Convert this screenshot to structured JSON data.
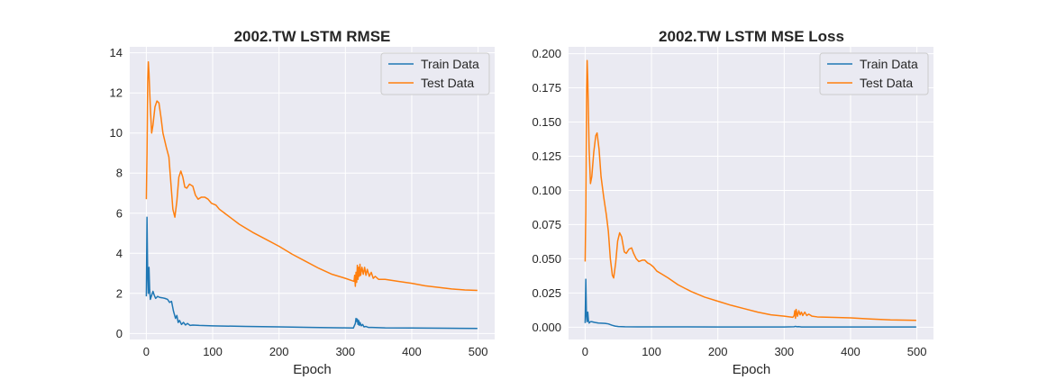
{
  "chart_data": [
    {
      "type": "line",
      "title": "2002.TW  LSTM RMSE",
      "xlabel": "Epoch",
      "ylabel": "",
      "xlim": [
        -25,
        525
      ],
      "ylim": [
        -0.3,
        14.3
      ],
      "xticks": [
        0,
        100,
        200,
        300,
        400,
        500
      ],
      "yticks": [
        0,
        2,
        4,
        6,
        8,
        10,
        12,
        14
      ],
      "ytick_labels": [
        "0",
        "2",
        "4",
        "6",
        "8",
        "10",
        "12",
        "14"
      ],
      "grid": true,
      "legend": "top-right",
      "series": [
        {
          "name": "Train Data",
          "color": "#1f77b4",
          "points": [
            [
              0,
              1.85
            ],
            [
              1,
              5.8
            ],
            [
              2,
              3.0
            ],
            [
              3,
              2.0
            ],
            [
              4,
              3.3
            ],
            [
              5,
              2.2
            ],
            [
              6,
              1.7
            ],
            [
              8,
              1.9
            ],
            [
              10,
              2.1
            ],
            [
              12,
              1.9
            ],
            [
              14,
              1.75
            ],
            [
              17,
              1.85
            ],
            [
              20,
              1.8
            ],
            [
              24,
              1.78
            ],
            [
              28,
              1.75
            ],
            [
              32,
              1.7
            ],
            [
              35,
              1.55
            ],
            [
              38,
              1.6
            ],
            [
              41,
              1.1
            ],
            [
              44,
              0.75
            ],
            [
              46,
              0.9
            ],
            [
              48,
              0.55
            ],
            [
              50,
              0.65
            ],
            [
              53,
              0.45
            ],
            [
              56,
              0.55
            ],
            [
              59,
              0.42
            ],
            [
              62,
              0.5
            ],
            [
              66,
              0.4
            ],
            [
              70,
              0.42
            ],
            [
              80,
              0.4
            ],
            [
              100,
              0.38
            ],
            [
              150,
              0.35
            ],
            [
              200,
              0.33
            ],
            [
              250,
              0.3
            ],
            [
              300,
              0.28
            ],
            [
              312,
              0.27
            ],
            [
              315,
              0.5
            ],
            [
              316,
              0.75
            ],
            [
              317,
              0.6
            ],
            [
              318,
              0.72
            ],
            [
              319,
              0.45
            ],
            [
              320,
              0.65
            ],
            [
              321,
              0.4
            ],
            [
              322,
              0.55
            ],
            [
              324,
              0.38
            ],
            [
              326,
              0.45
            ],
            [
              328,
              0.33
            ],
            [
              331,
              0.35
            ],
            [
              335,
              0.3
            ],
            [
              340,
              0.3
            ],
            [
              360,
              0.28
            ],
            [
              400,
              0.27
            ],
            [
              450,
              0.26
            ],
            [
              499,
              0.25
            ]
          ]
        },
        {
          "name": "Test Data",
          "color": "#ff7f0e",
          "points": [
            [
              0,
              6.7
            ],
            [
              1,
              9.0
            ],
            [
              2,
              12.5
            ],
            [
              3,
              13.55
            ],
            [
              4,
              13.0
            ],
            [
              6,
              11.3
            ],
            [
              8,
              10.0
            ],
            [
              10,
              10.4
            ],
            [
              13,
              11.3
            ],
            [
              16,
              11.6
            ],
            [
              19,
              11.5
            ],
            [
              22,
              10.8
            ],
            [
              25,
              10.0
            ],
            [
              30,
              9.3
            ],
            [
              34,
              8.8
            ],
            [
              37,
              7.5
            ],
            [
              40,
              6.2
            ],
            [
              43,
              5.8
            ],
            [
              46,
              6.6
            ],
            [
              49,
              7.8
            ],
            [
              52,
              8.1
            ],
            [
              55,
              7.8
            ],
            [
              58,
              7.3
            ],
            [
              61,
              7.25
            ],
            [
              65,
              7.45
            ],
            [
              70,
              7.35
            ],
            [
              74,
              6.9
            ],
            [
              78,
              6.7
            ],
            [
              83,
              6.8
            ],
            [
              88,
              6.8
            ],
            [
              93,
              6.7
            ],
            [
              98,
              6.5
            ],
            [
              105,
              6.4
            ],
            [
              110,
              6.2
            ],
            [
              120,
              5.95
            ],
            [
              130,
              5.7
            ],
            [
              140,
              5.45
            ],
            [
              160,
              5.05
            ],
            [
              180,
              4.7
            ],
            [
              200,
              4.35
            ],
            [
              220,
              3.95
            ],
            [
              240,
              3.6
            ],
            [
              260,
              3.25
            ],
            [
              280,
              2.95
            ],
            [
              300,
              2.75
            ],
            [
              313,
              2.6
            ],
            [
              314,
              2.9
            ],
            [
              315,
              2.35
            ],
            [
              316,
              3.05
            ],
            [
              317,
              2.55
            ],
            [
              318,
              3.4
            ],
            [
              319,
              2.7
            ],
            [
              320,
              3.3
            ],
            [
              321,
              2.85
            ],
            [
              322,
              3.45
            ],
            [
              323,
              2.9
            ],
            [
              325,
              3.3
            ],
            [
              327,
              2.95
            ],
            [
              329,
              3.3
            ],
            [
              331,
              2.9
            ],
            [
              333,
              3.2
            ],
            [
              336,
              2.85
            ],
            [
              339,
              3.05
            ],
            [
              342,
              2.75
            ],
            [
              345,
              2.85
            ],
            [
              350,
              2.7
            ],
            [
              360,
              2.7
            ],
            [
              380,
              2.6
            ],
            [
              400,
              2.5
            ],
            [
              420,
              2.38
            ],
            [
              440,
              2.3
            ],
            [
              460,
              2.22
            ],
            [
              480,
              2.17
            ],
            [
              499,
              2.15
            ]
          ]
        }
      ]
    },
    {
      "type": "line",
      "title": "2002.TW  LSTM MSE Loss",
      "xlabel": "Epoch",
      "ylabel": "",
      "xlim": [
        -25,
        525
      ],
      "ylim": [
        -0.009,
        0.205
      ],
      "xticks": [
        0,
        100,
        200,
        300,
        400,
        500
      ],
      "yticks": [
        0,
        0.025,
        0.05,
        0.075,
        0.1,
        0.125,
        0.15,
        0.175,
        0.2
      ],
      "ytick_labels": [
        "0.000",
        "0.025",
        "0.050",
        "0.075",
        "0.100",
        "0.125",
        "0.150",
        "0.175",
        "0.200"
      ],
      "grid": true,
      "legend": "top-right",
      "series": [
        {
          "name": "Train Data",
          "color": "#1f77b4",
          "points": [
            [
              0,
              0.003
            ],
            [
              1,
              0.035
            ],
            [
              2,
              0.009
            ],
            [
              3,
              0.004
            ],
            [
              4,
              0.011
            ],
            [
              5,
              0.005
            ],
            [
              6,
              0.003
            ],
            [
              8,
              0.004
            ],
            [
              10,
              0.004
            ],
            [
              14,
              0.0035
            ],
            [
              20,
              0.003
            ],
            [
              30,
              0.0028
            ],
            [
              35,
              0.0024
            ],
            [
              40,
              0.0015
            ],
            [
              45,
              0.0008
            ],
            [
              50,
              0.0005
            ],
            [
              60,
              0.0003
            ],
            [
              80,
              0.0002
            ],
            [
              120,
              0.0002
            ],
            [
              200,
              0.00015
            ],
            [
              300,
              0.00012
            ],
            [
              315,
              0.0003
            ],
            [
              317,
              0.0006
            ],
            [
              319,
              0.0003
            ],
            [
              322,
              0.0004
            ],
            [
              326,
              0.00015
            ],
            [
              340,
              0.0001
            ],
            [
              400,
              0.0001
            ],
            [
              499,
              0.0001
            ]
          ]
        },
        {
          "name": "Test Data",
          "color": "#ff7f0e",
          "points": [
            [
              0,
              0.048
            ],
            [
              1,
              0.085
            ],
            [
              2,
              0.165
            ],
            [
              3,
              0.195
            ],
            [
              4,
              0.18
            ],
            [
              6,
              0.13
            ],
            [
              8,
              0.105
            ],
            [
              10,
              0.11
            ],
            [
              13,
              0.128
            ],
            [
              16,
              0.14
            ],
            [
              18,
              0.142
            ],
            [
              21,
              0.13
            ],
            [
              24,
              0.11
            ],
            [
              28,
              0.095
            ],
            [
              32,
              0.082
            ],
            [
              35,
              0.07
            ],
            [
              38,
              0.05
            ],
            [
              41,
              0.038
            ],
            [
              43,
              0.036
            ],
            [
              46,
              0.047
            ],
            [
              49,
              0.063
            ],
            [
              52,
              0.069
            ],
            [
              55,
              0.066
            ],
            [
              59,
              0.055
            ],
            [
              62,
              0.054
            ],
            [
              66,
              0.057
            ],
            [
              70,
              0.058
            ],
            [
              73,
              0.054
            ],
            [
              77,
              0.05
            ],
            [
              81,
              0.048
            ],
            [
              86,
              0.049
            ],
            [
              90,
              0.049
            ],
            [
              94,
              0.047
            ],
            [
              98,
              0.046
            ],
            [
              103,
              0.044
            ],
            [
              108,
              0.041
            ],
            [
              115,
              0.039
            ],
            [
              125,
              0.036
            ],
            [
              140,
              0.031
            ],
            [
              160,
              0.026
            ],
            [
              180,
              0.022
            ],
            [
              200,
              0.019
            ],
            [
              220,
              0.016
            ],
            [
              240,
              0.0135
            ],
            [
              260,
              0.011
            ],
            [
              280,
              0.009
            ],
            [
              300,
              0.008
            ],
            [
              313,
              0.0072
            ],
            [
              315,
              0.0085
            ],
            [
              316,
              0.012
            ],
            [
              317,
              0.0065
            ],
            [
              318,
              0.013
            ],
            [
              320,
              0.008
            ],
            [
              322,
              0.012
            ],
            [
              324,
              0.009
            ],
            [
              326,
              0.011
            ],
            [
              328,
              0.0085
            ],
            [
              331,
              0.011
            ],
            [
              334,
              0.0085
            ],
            [
              337,
              0.0095
            ],
            [
              342,
              0.008
            ],
            [
              350,
              0.0075
            ],
            [
              370,
              0.0072
            ],
            [
              400,
              0.0068
            ],
            [
              430,
              0.006
            ],
            [
              460,
              0.0053
            ],
            [
              499,
              0.005
            ]
          ]
        }
      ]
    }
  ]
}
